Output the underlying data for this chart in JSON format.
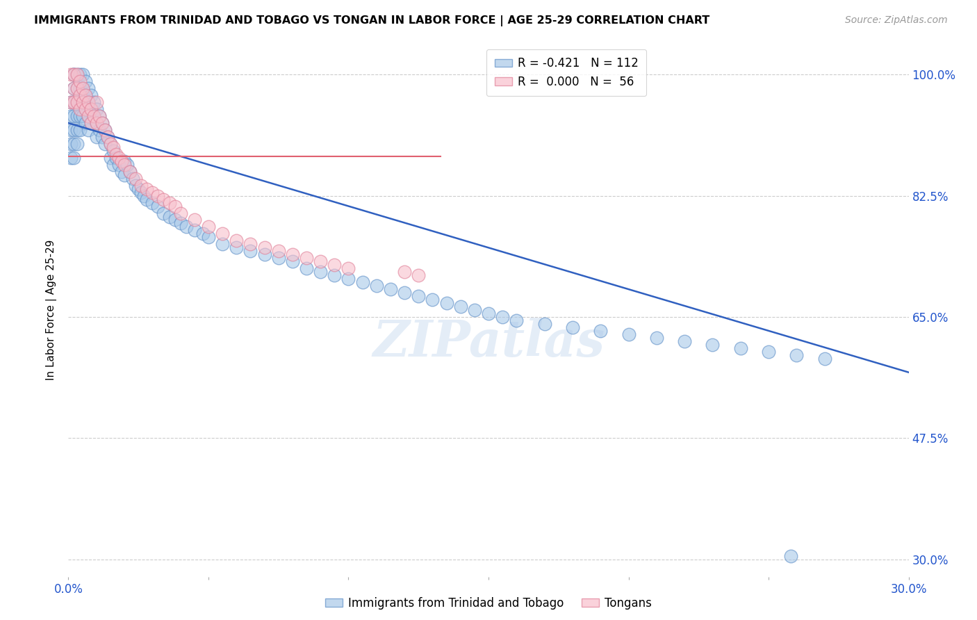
{
  "title": "IMMIGRANTS FROM TRINIDAD AND TOBAGO VS TONGAN IN LABOR FORCE | AGE 25-29 CORRELATION CHART",
  "source": "Source: ZipAtlas.com",
  "ylabel": "In Labor Force | Age 25-29",
  "xlim": [
    0.0,
    0.3
  ],
  "ylim": [
    0.275,
    1.045
  ],
  "ytick_vals": [
    0.3,
    0.475,
    0.65,
    0.825,
    1.0
  ],
  "ytick_labels": [
    "30.0%",
    "47.5%",
    "65.0%",
    "82.5%",
    "100.0%"
  ],
  "xtick_vals": [
    0.0,
    0.05,
    0.1,
    0.15,
    0.2,
    0.25,
    0.3
  ],
  "xtick_labels": [
    "0.0%",
    "",
    "",
    "",
    "",
    "",
    "30.0%"
  ],
  "watermark_text": "ZIPatlas",
  "blue_face": "#a8c8e8",
  "blue_edge": "#6090c8",
  "pink_face": "#f8c0cc",
  "pink_edge": "#e08098",
  "blue_line_color": "#3060c0",
  "pink_line_color": "#e06070",
  "blue_line_x": [
    0.0,
    0.3
  ],
  "blue_line_y": [
    0.93,
    0.57
  ],
  "pink_line_x": [
    0.0,
    0.133
  ],
  "pink_line_y": [
    0.882,
    0.882
  ],
  "legend_blue_label": "R = -0.421   N = 112",
  "legend_pink_label": "R =  0.000   N =  56",
  "bottom_legend_blue": "Immigrants from Trinidad and Tobago",
  "bottom_legend_pink": "Tongans",
  "trinidad_x": [
    0.001,
    0.001,
    0.001,
    0.001,
    0.001,
    0.002,
    0.002,
    0.002,
    0.002,
    0.002,
    0.002,
    0.002,
    0.002,
    0.003,
    0.003,
    0.003,
    0.003,
    0.003,
    0.003,
    0.004,
    0.004,
    0.004,
    0.004,
    0.004,
    0.005,
    0.005,
    0.005,
    0.005,
    0.006,
    0.006,
    0.006,
    0.006,
    0.007,
    0.007,
    0.007,
    0.007,
    0.008,
    0.008,
    0.008,
    0.009,
    0.009,
    0.01,
    0.01,
    0.01,
    0.011,
    0.011,
    0.012,
    0.012,
    0.013,
    0.013,
    0.014,
    0.015,
    0.015,
    0.016,
    0.016,
    0.017,
    0.018,
    0.019,
    0.02,
    0.02,
    0.021,
    0.022,
    0.023,
    0.024,
    0.025,
    0.026,
    0.027,
    0.028,
    0.03,
    0.032,
    0.034,
    0.036,
    0.038,
    0.04,
    0.042,
    0.045,
    0.048,
    0.05,
    0.055,
    0.06,
    0.065,
    0.07,
    0.075,
    0.08,
    0.085,
    0.09,
    0.095,
    0.1,
    0.105,
    0.11,
    0.115,
    0.12,
    0.125,
    0.13,
    0.135,
    0.14,
    0.145,
    0.15,
    0.155,
    0.16,
    0.17,
    0.18,
    0.19,
    0.2,
    0.21,
    0.22,
    0.23,
    0.24,
    0.25,
    0.26,
    0.27,
    0.258
  ],
  "trinidad_y": [
    0.96,
    0.94,
    0.92,
    0.9,
    0.88,
    1.0,
    1.0,
    0.98,
    0.96,
    0.94,
    0.92,
    0.9,
    0.88,
    1.0,
    0.98,
    0.96,
    0.94,
    0.92,
    0.9,
    1.0,
    0.98,
    0.96,
    0.94,
    0.92,
    1.0,
    0.98,
    0.96,
    0.94,
    0.99,
    0.97,
    0.95,
    0.93,
    0.98,
    0.96,
    0.94,
    0.92,
    0.97,
    0.95,
    0.93,
    0.96,
    0.94,
    0.95,
    0.93,
    0.91,
    0.94,
    0.92,
    0.93,
    0.91,
    0.92,
    0.9,
    0.91,
    0.9,
    0.88,
    0.89,
    0.87,
    0.88,
    0.87,
    0.86,
    0.875,
    0.855,
    0.87,
    0.86,
    0.85,
    0.84,
    0.835,
    0.83,
    0.825,
    0.82,
    0.815,
    0.81,
    0.8,
    0.795,
    0.79,
    0.785,
    0.78,
    0.775,
    0.77,
    0.765,
    0.755,
    0.75,
    0.745,
    0.74,
    0.735,
    0.73,
    0.72,
    0.715,
    0.71,
    0.705,
    0.7,
    0.695,
    0.69,
    0.685,
    0.68,
    0.675,
    0.67,
    0.665,
    0.66,
    0.655,
    0.65,
    0.645,
    0.64,
    0.635,
    0.63,
    0.625,
    0.62,
    0.615,
    0.61,
    0.605,
    0.6,
    0.595,
    0.59,
    0.305
  ],
  "tongan_x": [
    0.001,
    0.001,
    0.002,
    0.002,
    0.002,
    0.003,
    0.003,
    0.003,
    0.004,
    0.004,
    0.004,
    0.005,
    0.005,
    0.006,
    0.006,
    0.007,
    0.007,
    0.008,
    0.008,
    0.009,
    0.01,
    0.01,
    0.011,
    0.012,
    0.013,
    0.014,
    0.015,
    0.016,
    0.017,
    0.018,
    0.019,
    0.02,
    0.022,
    0.024,
    0.026,
    0.028,
    0.03,
    0.032,
    0.034,
    0.036,
    0.038,
    0.04,
    0.045,
    0.05,
    0.055,
    0.06,
    0.065,
    0.07,
    0.075,
    0.08,
    0.085,
    0.09,
    0.095,
    0.1,
    0.12,
    0.125
  ],
  "tongan_y": [
    1.0,
    0.96,
    1.0,
    0.98,
    0.96,
    1.0,
    0.98,
    0.96,
    0.99,
    0.97,
    0.95,
    0.98,
    0.96,
    0.97,
    0.95,
    0.96,
    0.94,
    0.95,
    0.93,
    0.94,
    0.96,
    0.93,
    0.94,
    0.93,
    0.92,
    0.91,
    0.9,
    0.895,
    0.885,
    0.88,
    0.875,
    0.87,
    0.86,
    0.85,
    0.84,
    0.835,
    0.83,
    0.825,
    0.82,
    0.815,
    0.81,
    0.8,
    0.79,
    0.78,
    0.77,
    0.76,
    0.755,
    0.75,
    0.745,
    0.74,
    0.735,
    0.73,
    0.725,
    0.72,
    0.715,
    0.71
  ]
}
